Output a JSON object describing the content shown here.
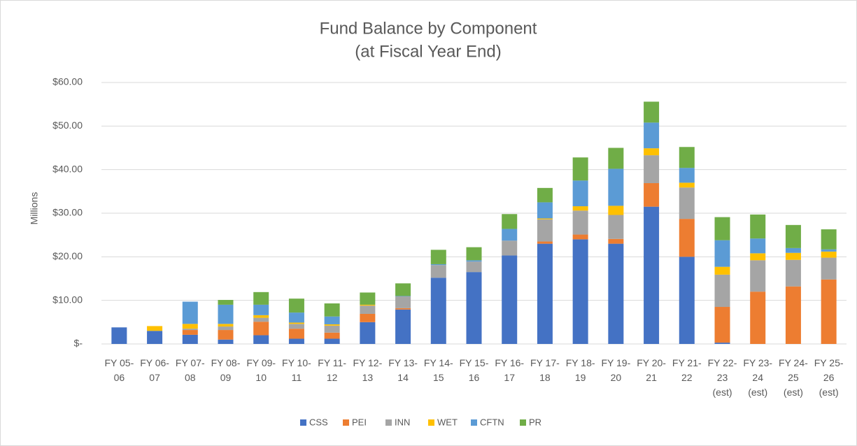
{
  "chart_data": {
    "type": "bar",
    "stacked": true,
    "title": "Fund Balance by Component",
    "subtitle": "(at Fiscal Year End)",
    "y_label": "Millions",
    "categories": [
      "FY 05-\n06",
      "FY 06-\n07",
      "FY 07-\n08",
      "FY 08-\n09",
      "FY 09-\n10",
      "FY 10-\n11",
      "FY 11-\n12",
      "FY 12-\n13",
      "FY 13-\n14",
      "FY 14-\n15",
      "FY 15-\n16",
      "FY 16-\n17",
      "FY 17-\n18",
      "FY 18-\n19",
      "FY 19-\n20",
      "FY 20-\n21",
      "FY 21-\n22",
      "FY 22-\n23\n(est)",
      "FY 23-\n24\n(est)",
      "FY 24-\n25\n(est)",
      "FY 25-\n26\n(est)"
    ],
    "series": [
      {
        "name": "CSS",
        "color": "#4472c4",
        "values": [
          3.8,
          3.0,
          2.1,
          1.0,
          2.0,
          1.2,
          1.2,
          5.0,
          7.9,
          15.2,
          16.5,
          20.3,
          23.0,
          24.0,
          23.0,
          31.5,
          20.0,
          0.3,
          0,
          0,
          0
        ]
      },
      {
        "name": "PEI",
        "color": "#ed7d31",
        "values": [
          0,
          0,
          1.1,
          2.2,
          3.1,
          2.3,
          1.4,
          1.9,
          0.3,
          0,
          0,
          0,
          0.5,
          1.1,
          1.1,
          5.4,
          8.7,
          8.2,
          12.0,
          13.2,
          14.8
        ]
      },
      {
        "name": "INN",
        "color": "#a5a5a5",
        "values": [
          0,
          0,
          0.3,
          0.8,
          0.9,
          1.1,
          1.6,
          1.9,
          2.7,
          2.9,
          2.4,
          3.4,
          5.1,
          5.5,
          5.5,
          6.4,
          7.2,
          7.4,
          7.2,
          6.1,
          5.0
        ]
      },
      {
        "name": "WET",
        "color": "#ffc000",
        "values": [
          0,
          1.1,
          1.1,
          0.6,
          0.6,
          0.3,
          0.3,
          0.2,
          0,
          0,
          0,
          0,
          0.2,
          1.0,
          2.1,
          1.6,
          1.1,
          1.8,
          1.6,
          1.6,
          1.4
        ]
      },
      {
        "name": "CFTN",
        "color": "#5b9bd5",
        "values": [
          0,
          0,
          5.1,
          4.4,
          2.4,
          2.3,
          1.8,
          0,
          0.1,
          0.2,
          0.3,
          2.7,
          3.7,
          5.9,
          8.5,
          5.9,
          3.4,
          6.1,
          3.4,
          1.1,
          0.5
        ]
      },
      {
        "name": "PR",
        "color": "#70ad47",
        "values": [
          0,
          0,
          0,
          1.1,
          2.9,
          3.2,
          3.0,
          2.8,
          2.9,
          3.3,
          3.0,
          3.4,
          3.3,
          5.3,
          4.8,
          4.8,
          4.8,
          5.3,
          5.5,
          5.3,
          4.6
        ]
      }
    ],
    "ylim": [
      0,
      60
    ],
    "yticks": [
      {
        "value": 0,
        "label": "$-"
      },
      {
        "value": 10,
        "label": "$10.00"
      },
      {
        "value": 20,
        "label": "$20.00"
      },
      {
        "value": 30,
        "label": "$30.00"
      },
      {
        "value": 40,
        "label": "$40.00"
      },
      {
        "value": 50,
        "label": "$50.00"
      },
      {
        "value": 60,
        "label": "$60.00"
      }
    ],
    "grid": true,
    "legend": "bottom"
  }
}
